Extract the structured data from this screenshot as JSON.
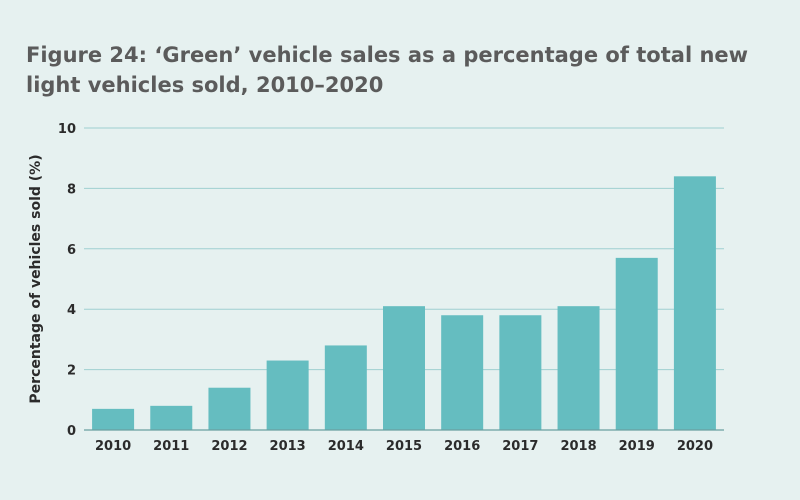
{
  "chart_data": {
    "type": "bar",
    "title": "Figure 24: ‘Green’ vehicle sales as a percentage of total new light vehicles sold, 2010–2020",
    "xlabel": "",
    "ylabel": "Percentage of vehicles sold (%)",
    "categories": [
      "2010",
      "2011",
      "2012",
      "2013",
      "2014",
      "2015",
      "2016",
      "2017",
      "2018",
      "2019",
      "2020"
    ],
    "values": [
      0.7,
      0.8,
      1.4,
      2.3,
      2.8,
      4.1,
      3.8,
      3.8,
      4.1,
      5.7,
      8.4
    ],
    "ylim": [
      0,
      10
    ],
    "yticks": [
      "0",
      "2",
      "4",
      "6",
      "8",
      "10"
    ],
    "grid": true,
    "legend": "none",
    "colors": {
      "bar": "#65bdc0",
      "grid": "#9fcfd1",
      "axis": "#6a9fa1",
      "background": "#e6f1f0"
    }
  }
}
